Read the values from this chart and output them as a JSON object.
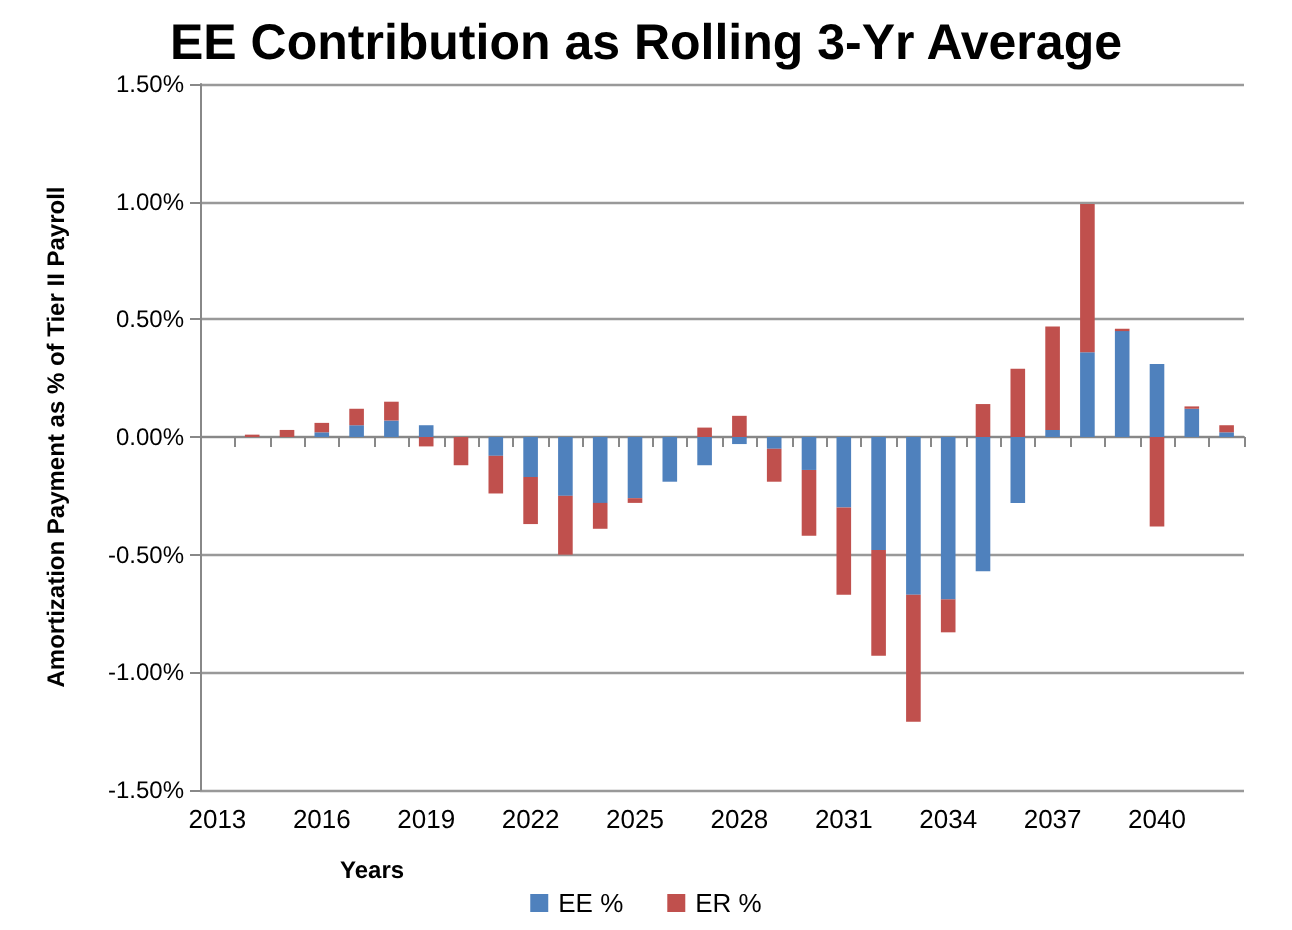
{
  "chart_data": {
    "type": "bar",
    "title": "EE Contribution as Rolling 3-Yr Average",
    "xlabel": "Years",
    "ylabel": "Amortization Payment as % of Tier II Payroll",
    "categories": [
      "2013",
      null,
      null,
      "2016",
      null,
      null,
      "2019",
      null,
      null,
      "2022",
      null,
      null,
      "2025",
      null,
      null,
      "2028",
      null,
      null,
      "2031",
      null,
      null,
      "2034",
      null,
      null,
      "2037",
      null,
      null,
      "2040",
      null,
      null
    ],
    "stacked": true,
    "series": [
      {
        "name": "EE %",
        "color": "#4f81bd",
        "values": [
          0,
          0,
          0,
          0.02,
          0.05,
          0.07,
          0.05,
          0,
          -0.08,
          -0.17,
          -0.25,
          -0.28,
          -0.26,
          -0.19,
          -0.12,
          -0.03,
          -0.05,
          -0.14,
          -0.3,
          -0.48,
          -0.67,
          -0.69,
          -0.57,
          -0.28,
          0.03,
          0.36,
          0.45,
          0.31,
          0.12,
          0.02
        ]
      },
      {
        "name": "ER %",
        "color": "#c0504d",
        "values": [
          0,
          0.01,
          0.03,
          0.04,
          0.07,
          0.08,
          -0.04,
          -0.12,
          -0.16,
          -0.2,
          -0.25,
          -0.11,
          -0.02,
          0,
          0.04,
          0.09,
          -0.14,
          -0.28,
          -0.37,
          -0.45,
          -0.54,
          -0.14,
          0.14,
          0.29,
          0.44,
          0.63,
          0.01,
          -0.38,
          0.01,
          0.03
        ]
      }
    ],
    "ylim": [
      -1.5,
      1.5
    ],
    "yticks": [
      {
        "value": -1.5,
        "label": "-1.50%"
      },
      {
        "value": -1,
        "label": "-1.00%"
      },
      {
        "value": -0.5,
        "label": "-0.50%"
      },
      {
        "value": 0,
        "label": "0.00%"
      },
      {
        "value": 0.5,
        "label": "0.50%"
      },
      {
        "value": 1,
        "label": "1.00%"
      },
      {
        "value": 1.5,
        "label": "1.50%"
      }
    ],
    "grid": "y",
    "legend": "bottom"
  }
}
